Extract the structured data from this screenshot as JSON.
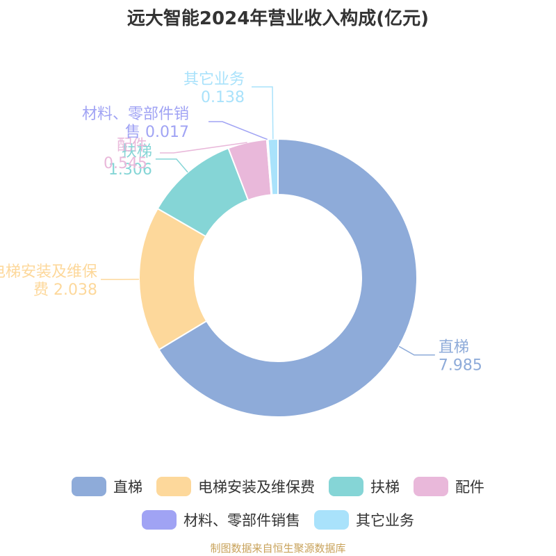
{
  "chart_data": {
    "type": "pie",
    "title": "远大智能2024年营业收入构成(亿元)",
    "categories": [
      "直梯",
      "电梯安装及维保费",
      "扶梯",
      "配件",
      "材料、零部件销售",
      "其它业务"
    ],
    "values": [
      7.985,
      2.038,
      1.306,
      0.545,
      0.017,
      0.138
    ],
    "value_labels": [
      "7.985",
      "2.038",
      "1.306",
      "0.545",
      "0.017",
      "0.138"
    ],
    "label_lines": [
      [
        "直梯",
        "7.985"
      ],
      [
        "电梯安装及维保",
        "费 2.038"
      ],
      [
        "扶梯",
        "1.306"
      ],
      [
        "配件",
        "0.545"
      ],
      [
        "材料、零部件销",
        "售 0.017"
      ],
      [
        "其它业务",
        "0.138"
      ]
    ],
    "colors": [
      "#8eabd9",
      "#fdd89b",
      "#85d5d6",
      "#e9b8da",
      "#a0a3f4",
      "#a9e2fb"
    ],
    "donut": true,
    "legend": "bottom",
    "source": "制图数据来自恒生聚源数据库"
  }
}
